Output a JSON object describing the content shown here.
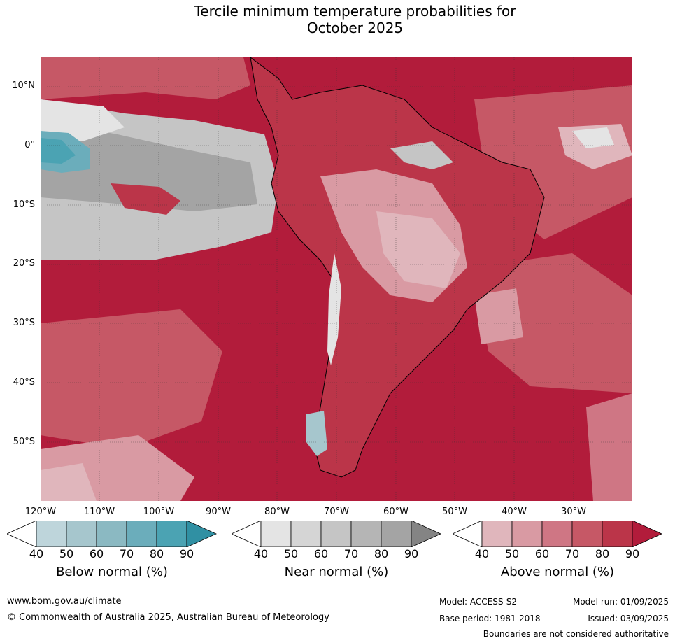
{
  "title_line1": "Tercile minimum temperature probabilities for",
  "title_line2": "October 2025",
  "lat_labels": [
    "10°N",
    "0°",
    "10°S",
    "20°S",
    "30°S",
    "40°S",
    "50°S"
  ],
  "lon_labels": [
    "120°W",
    "110°W",
    "100°W",
    "90°W",
    "80°W",
    "70°W",
    "60°W",
    "50°W",
    "40°W",
    "30°W"
  ],
  "colorbars": [
    {
      "label": "Below normal (%)",
      "ticks": [
        "40",
        "50",
        "60",
        "70",
        "80",
        "90"
      ],
      "colors": [
        "#ffffff",
        "#bed5db",
        "#a6c6cd",
        "#8bb9c2",
        "#6badbb",
        "#4ba3b3",
        "#3090a3"
      ]
    },
    {
      "label": "Near normal (%)",
      "ticks": [
        "40",
        "50",
        "60",
        "70",
        "80",
        "90"
      ],
      "colors": [
        "#ffffff",
        "#e4e4e4",
        "#d5d5d5",
        "#c5c5c5",
        "#b5b5b5",
        "#a4a4a4",
        "#848484"
      ]
    },
    {
      "label": "Above normal (%)",
      "ticks": [
        "40",
        "50",
        "60",
        "70",
        "80",
        "90"
      ],
      "colors": [
        "#ffffff",
        "#e0b6bc",
        "#d99aa3",
        "#cf7684",
        "#c65866",
        "#bb3549",
        "#b21c3b"
      ]
    }
  ],
  "footer": {
    "website": "www.bom.gov.au/climate",
    "copyright": "© Commonwealth of Australia 2025, Australian Bureau of Meteorology",
    "model": "Model: ACCESS-S2",
    "model_run": "Model run: 01/09/2025",
    "base_period": "Base period: 1981-2018",
    "issued": "Issued: 03/09/2025",
    "disclaimer": "Boundaries are not considered authoritative"
  }
}
